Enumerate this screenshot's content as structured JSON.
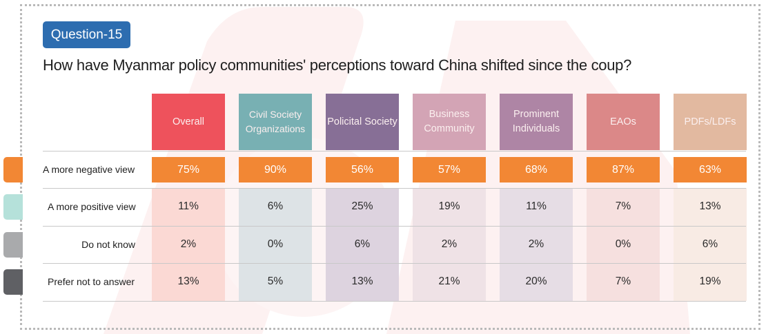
{
  "badge": "Question-15",
  "question": "How have Myanmar policy communities' perceptions toward China shifted since the coup?",
  "chart_data": {
    "type": "table",
    "title": "How have Myanmar policy communities' perceptions toward China shifted since the coup?",
    "unit": "%",
    "columns": [
      {
        "label": "Overall",
        "header_color": "#ee525c",
        "tint": "#fbd9d4"
      },
      {
        "label": "Civil Society Organizations",
        "header_color": "#78b0b3",
        "tint": "#dde3e6"
      },
      {
        "label": "Policital Society",
        "header_color": "#876f96",
        "tint": "#ddd3df"
      },
      {
        "label": "Business Community",
        "header_color": "#d3a4b5",
        "tint": "#efe2e6"
      },
      {
        "label": "Prominent Individuals",
        "header_color": "#ae85a5",
        "tint": "#e6dde5"
      },
      {
        "label": "EAOs",
        "header_color": "#db8888",
        "tint": "#f6e0df"
      },
      {
        "label": "PDFs/LDFs",
        "header_color": "#e2b9a0",
        "tint": "#f8ebe4"
      }
    ],
    "rows": [
      {
        "label": "A more negative view",
        "swatch_color": "#f28734",
        "values": [
          "75%",
          "90%",
          "56%",
          "57%",
          "68%",
          "87%",
          "63%"
        ]
      },
      {
        "label": "A more positive view",
        "swatch_color": "#b5e1da",
        "values": [
          "11%",
          "6%",
          "25%",
          "19%",
          "11%",
          "7%",
          "13%"
        ]
      },
      {
        "label": "Do not know",
        "swatch_color": "#a9aaac",
        "values": [
          "2%",
          "0%",
          "6%",
          "2%",
          "2%",
          "0%",
          "6%"
        ]
      },
      {
        "label": "Prefer not to answer",
        "swatch_color": "#5f6064",
        "values": [
          "13%",
          "5%",
          "13%",
          "21%",
          "20%",
          "7%",
          "19%"
        ]
      }
    ]
  }
}
